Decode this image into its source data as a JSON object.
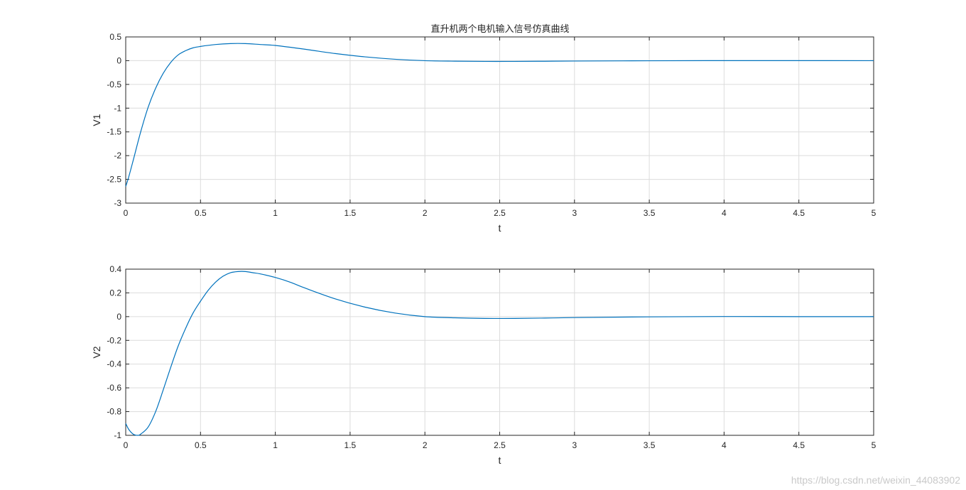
{
  "figure": {
    "title": "直升机两个电机输入信号仿真曲线",
    "watermark": "https://blog.csdn.net/weixin_44083902",
    "line_color": "#0072BD"
  },
  "chart_data": [
    {
      "type": "line",
      "title": "直升机两个电机输入信号仿真曲线",
      "xlabel": "t",
      "ylabel": "V1",
      "xlim": [
        0,
        5
      ],
      "ylim": [
        -3,
        0.5
      ],
      "xticks": [
        "0",
        "0.5",
        "1",
        "1.5",
        "2",
        "2.5",
        "3",
        "3.5",
        "4",
        "4.5",
        "5"
      ],
      "yticks": [
        "0.5",
        "0",
        "-0.5",
        "-1",
        "-1.5",
        "-2",
        "-2.5",
        "-3"
      ],
      "grid": true,
      "series": [
        {
          "x": [
            0,
            0.02,
            0.05,
            0.1,
            0.15,
            0.2,
            0.25,
            0.3,
            0.35,
            0.4,
            0.45,
            0.5,
            0.6,
            0.7,
            0.8,
            0.9,
            1.0,
            1.2,
            1.4,
            1.6,
            1.8,
            2.0,
            2.2,
            2.4,
            2.6,
            2.8,
            3.0,
            3.5,
            4.0,
            4.5,
            5.0
          ],
          "y": [
            -2.65,
            -2.45,
            -2.1,
            -1.5,
            -0.98,
            -0.58,
            -0.27,
            -0.04,
            0.12,
            0.21,
            0.27,
            0.3,
            0.34,
            0.36,
            0.36,
            0.34,
            0.32,
            0.24,
            0.15,
            0.08,
            0.03,
            0.0,
            -0.01,
            -0.015,
            -0.015,
            -0.012,
            -0.008,
            -0.002,
            0.001,
            0.001,
            0.0
          ]
        }
      ]
    },
    {
      "type": "line",
      "xlabel": "t",
      "ylabel": "V2",
      "xlim": [
        0,
        5
      ],
      "ylim": [
        -1,
        0.4
      ],
      "xticks": [
        "0",
        "0.5",
        "1",
        "1.5",
        "2",
        "2.5",
        "3",
        "3.5",
        "4",
        "4.5",
        "5"
      ],
      "yticks": [
        "0.4",
        "0.2",
        "0",
        "-0.2",
        "-0.4",
        "-0.6",
        "-0.8",
        "-1"
      ],
      "grid": true,
      "series": [
        {
          "x": [
            0,
            0.02,
            0.05,
            0.08,
            0.1,
            0.15,
            0.2,
            0.25,
            0.3,
            0.35,
            0.4,
            0.45,
            0.5,
            0.55,
            0.6,
            0.65,
            0.7,
            0.75,
            0.8,
            0.85,
            0.9,
            1.0,
            1.1,
            1.2,
            1.4,
            1.6,
            1.8,
            2.0,
            2.2,
            2.4,
            2.6,
            2.8,
            3.0,
            3.5,
            4.0,
            4.5,
            5.0
          ],
          "y": [
            -0.9,
            -0.95,
            -0.99,
            -1.0,
            -0.99,
            -0.93,
            -0.8,
            -0.62,
            -0.43,
            -0.25,
            -0.1,
            0.03,
            0.13,
            0.22,
            0.29,
            0.34,
            0.37,
            0.38,
            0.38,
            0.37,
            0.36,
            0.33,
            0.29,
            0.24,
            0.15,
            0.08,
            0.03,
            0.0,
            -0.01,
            -0.015,
            -0.015,
            -0.012,
            -0.008,
            -0.002,
            0.001,
            0.0,
            0.0
          ]
        }
      ]
    }
  ]
}
